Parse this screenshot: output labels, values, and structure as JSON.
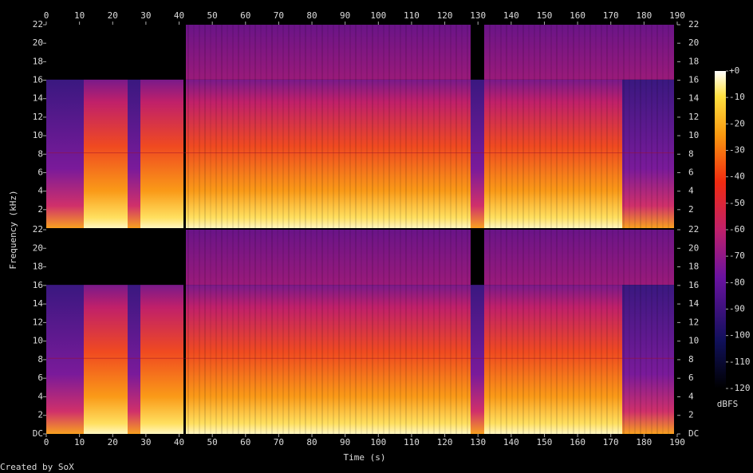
{
  "chart_data": {
    "type": "spectrogram",
    "x_label": "Time (s)",
    "y_label": "Frequency (kHz)",
    "xlim": [
      0,
      190
    ],
    "xticks": [
      0,
      10,
      20,
      30,
      40,
      50,
      60,
      70,
      80,
      90,
      100,
      110,
      120,
      130,
      140,
      150,
      160,
      170,
      180,
      190
    ],
    "channels": [
      {
        "ylim": [
          0,
          22
        ],
        "yticks": [
          2,
          4,
          6,
          8,
          10,
          12,
          14,
          16,
          18,
          20,
          22
        ]
      },
      {
        "ylim": [
          0,
          22
        ],
        "yticks": [
          {
            "value": 0,
            "label": "DC"
          },
          2,
          4,
          6,
          8,
          10,
          12,
          14,
          16,
          18,
          20,
          22
        ]
      }
    ],
    "colorbar": {
      "label": "dBFS",
      "lim": [
        -120,
        0
      ],
      "ticks": [
        {
          "value": 0,
          "label": "+0"
        },
        -10,
        -20,
        -30,
        -40,
        -50,
        -60,
        -70,
        -80,
        -90,
        -100,
        -110,
        -120
      ]
    }
  },
  "footer": "Created by SoX"
}
